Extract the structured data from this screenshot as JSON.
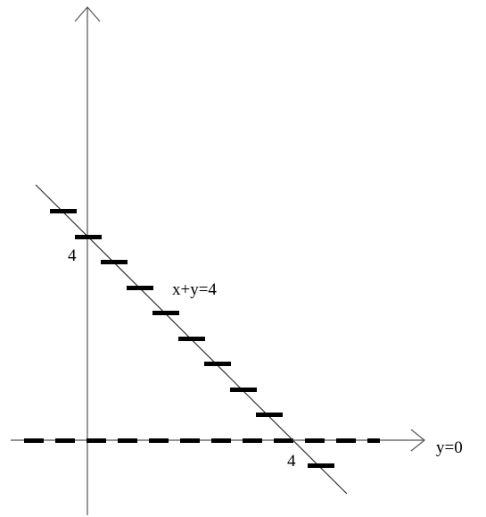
{
  "labels": {
    "line": "x+y=4",
    "x_axis_line": "y=0",
    "y_intercept": "4",
    "x_intercept": "4"
  },
  "colors": {
    "ink": "#000000",
    "axis": "#555555",
    "line": "#333333"
  }
}
